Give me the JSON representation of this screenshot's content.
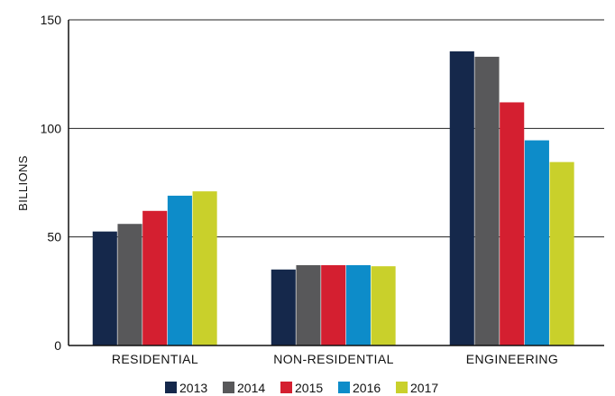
{
  "chart_data": {
    "type": "bar",
    "title": "",
    "xlabel": "",
    "ylabel": "BILLIONS",
    "ylim": [
      0,
      150
    ],
    "yticks": [
      0,
      50,
      100,
      150
    ],
    "grid": true,
    "legend_placement": "bottom",
    "categories": [
      "RESIDENTIAL",
      "NON-RESIDENTIAL",
      "ENGINEERING"
    ],
    "series": [
      {
        "name": "2013",
        "color": "#15284b",
        "values": [
          52.5,
          35,
          135.5
        ]
      },
      {
        "name": "2014",
        "color": "#58585a",
        "values": [
          56,
          37,
          133
        ]
      },
      {
        "name": "2015",
        "color": "#d41f30",
        "values": [
          62,
          37,
          112
        ]
      },
      {
        "name": "2016",
        "color": "#0d8cc9",
        "values": [
          69,
          37,
          94.5
        ]
      },
      {
        "name": "2017",
        "color": "#c9d02b",
        "values": [
          71,
          36.5,
          84.5
        ]
      }
    ]
  }
}
